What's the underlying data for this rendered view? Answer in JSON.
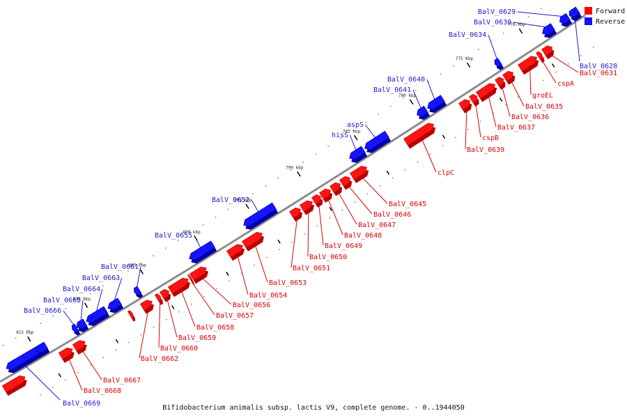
{
  "legend": {
    "forward": {
      "label": "Forward",
      "color": "#ff0000"
    },
    "reverse": {
      "label": "Reverse",
      "color": "#1414ff"
    }
  },
  "colors": {
    "forward": "#ff1414",
    "forward_dark": "#b80000",
    "reverse": "#1414ff",
    "reverse_dark": "#0000a8",
    "backbone": "#8c8c8c",
    "forward_label": "#dd0000",
    "reverse_label": "#1a1acc"
  },
  "caption": "Bifidobacterium animalis subsp. lactis V9, complete genome. - 0..1944050",
  "ticks": [
    "770 kbp",
    "775 kbp",
    "780 kbp",
    "785 kbp",
    "790 kbp",
    "795 kbp",
    "800 kbp",
    "805 kbp",
    "810 kbp",
    "815 kbp"
  ],
  "forward_labels": [
    "BalV_0631",
    "cspA",
    "groEL",
    "BalV_0635",
    "BalV_0636",
    "BalV_0637",
    "cspB",
    "BalV_0639",
    "clpC",
    "BalV_0645",
    "BalV_0646",
    "BalV_0647",
    "BalV_0648",
    "BalV_0649",
    "BalV_0650",
    "BalV_0651",
    "BalV_0653",
    "BalV_0654",
    "BalV_0656",
    "BalV_0657",
    "BalV_0658",
    "BalV_0659",
    "BalV_0660",
    "BalV_0662",
    "BalV_0667",
    "BalV_0668"
  ],
  "reverse_labels": [
    "BalV_0629",
    "BalV_0630",
    "BalV_0634",
    "BalV_0628",
    "BalV_0640",
    "BalV_0641",
    "aspS",
    "hisS",
    "BalV_0652",
    "BalV_0655",
    "BalV_0661",
    "BalV_0663",
    "BalV_0664",
    "BalV_0665",
    "BalV_0666",
    "BalV_0669"
  ]
}
